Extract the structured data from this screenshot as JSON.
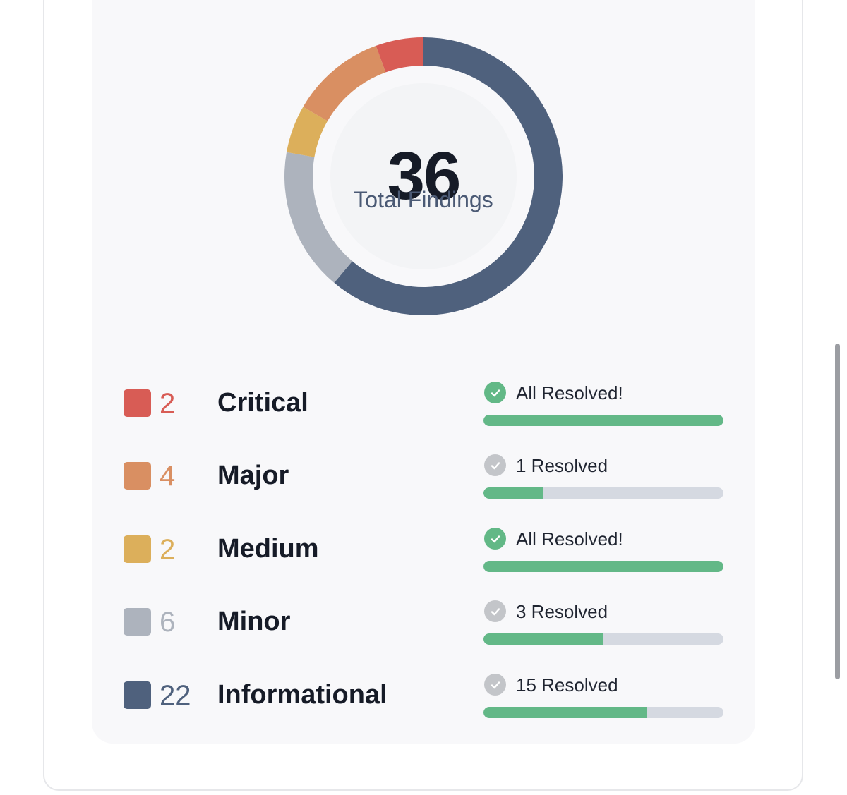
{
  "chart_data": {
    "type": "pie",
    "title": "",
    "total": 36,
    "total_label": "Total Findings",
    "categories": [
      "Critical",
      "Major",
      "Medium",
      "Minor",
      "Informational"
    ],
    "values": [
      2,
      4,
      2,
      6,
      22
    ],
    "colors": [
      "#d85c55",
      "#d98f62",
      "#dcaf5b",
      "#adb3bd",
      "#4f617d"
    ],
    "resolved": [
      2,
      1,
      2,
      3,
      15
    ],
    "status_labels": [
      "All Resolved!",
      "1 Resolved",
      "All Resolved!",
      "3 Resolved",
      "15 Resolved"
    ],
    "progress_color": "#63b887",
    "check_complete_color": "#62b886",
    "check_partial_color": "#c3c5c9"
  }
}
